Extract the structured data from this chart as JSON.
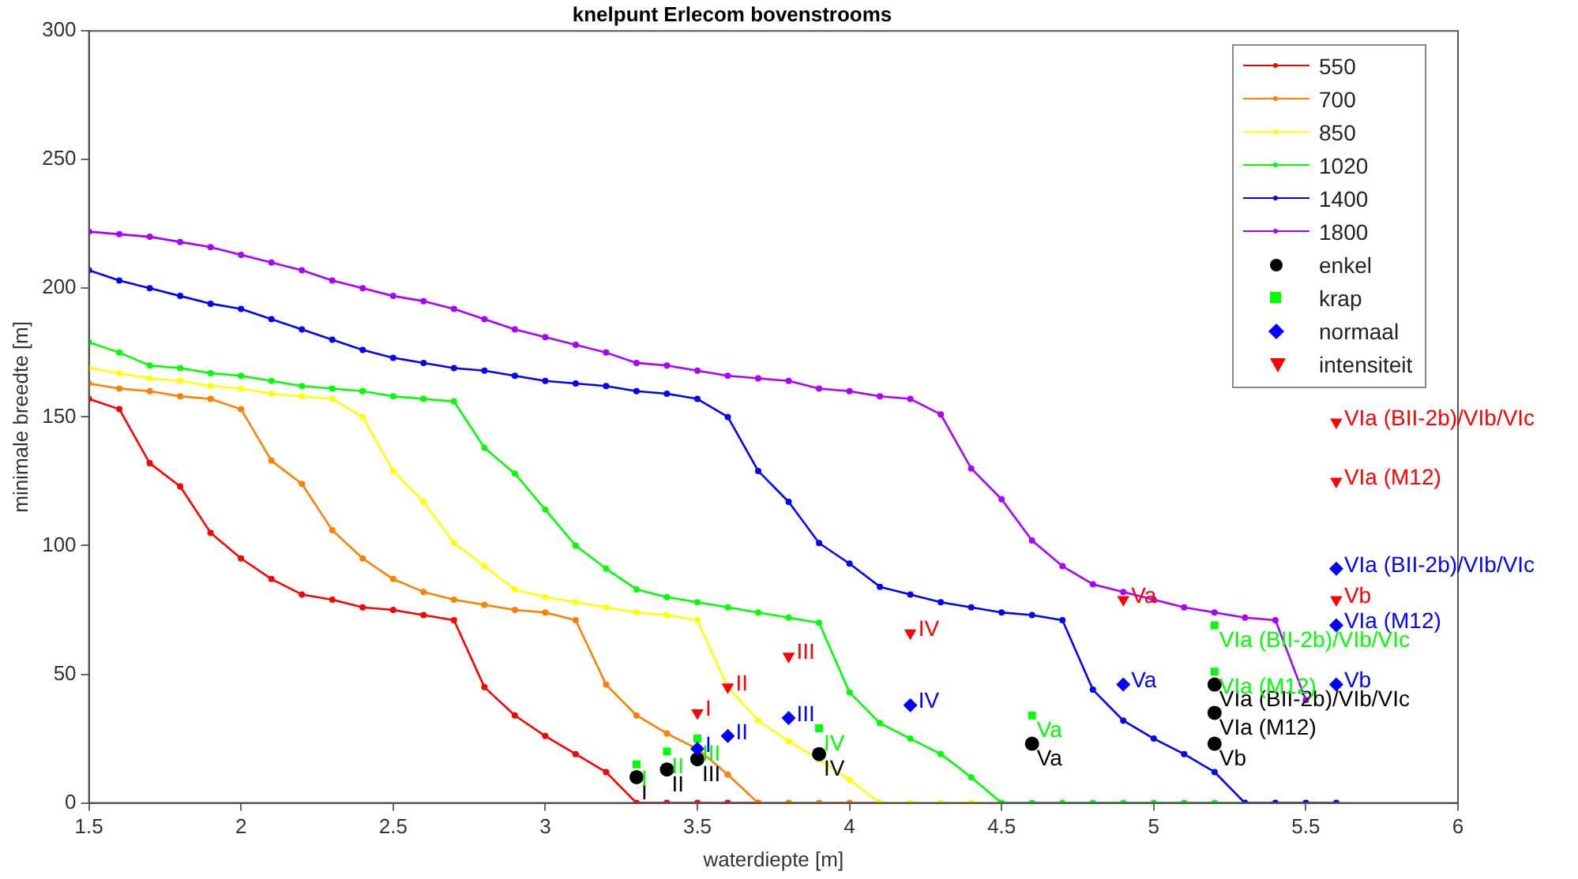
{
  "chart_data": {
    "type": "line",
    "title": "knelpunt Erlecom bovenstrooms",
    "xlabel": "waterdiepte [m]",
    "ylabel": "minimale breedte [m]",
    "xlim": [
      1.5,
      6
    ],
    "xticks": [
      1.5,
      2,
      2.5,
      3,
      3.5,
      4,
      4.5,
      5,
      5.5,
      6
    ],
    "ylim": [
      0,
      300
    ],
    "yticks": [
      0,
      50,
      100,
      150,
      200,
      250,
      300
    ],
    "legend": "top right",
    "x": [
      1.5,
      1.6,
      1.7,
      1.8,
      1.9,
      2.0,
      2.1,
      2.2,
      2.3,
      2.4,
      2.5,
      2.6,
      2.7,
      2.8,
      2.9,
      3.0,
      3.1,
      3.2,
      3.3,
      3.4,
      3.5,
      3.6,
      3.7,
      3.8,
      3.9,
      4.0,
      4.1,
      4.2,
      4.3,
      4.4,
      4.5,
      4.6,
      4.7,
      4.8,
      4.9,
      5.0,
      5.1,
      5.2,
      5.3,
      5.4,
      5.5,
      5.6
    ],
    "series": [
      {
        "name": "550",
        "marker": "circle",
        "color": "#ff0000",
        "values": [
          157,
          153,
          132,
          123,
          105,
          95,
          87,
          81,
          79,
          76,
          75,
          73,
          71,
          45,
          34,
          26,
          19,
          12,
          0,
          0,
          0,
          0,
          0,
          null,
          null,
          null,
          null,
          null,
          null,
          null,
          null,
          null,
          null,
          null,
          null,
          null,
          null,
          null,
          null,
          null,
          null,
          null
        ]
      },
      {
        "name": "700",
        "marker": "circle",
        "color": "#ff8000",
        "values": [
          163,
          161,
          160,
          158,
          157,
          153,
          133,
          124,
          106,
          95,
          87,
          82,
          79,
          77,
          75,
          74,
          71,
          46,
          34,
          27,
          21,
          11,
          0,
          0,
          0,
          0,
          0,
          null,
          null,
          null,
          null,
          null,
          null,
          null,
          null,
          null,
          null,
          null,
          null,
          null,
          null,
          null
        ]
      },
      {
        "name": "850",
        "marker": "circle",
        "color": "#ffff00",
        "values": [
          169,
          167,
          165,
          164,
          162,
          161,
          159,
          158,
          157,
          150,
          129,
          117,
          101,
          92,
          83,
          80,
          78,
          76,
          74,
          73,
          71,
          45,
          32,
          24,
          17,
          9,
          0,
          0,
          0,
          0,
          0,
          null,
          null,
          null,
          null,
          null,
          null,
          null,
          null,
          null,
          null,
          null
        ]
      },
      {
        "name": "1020",
        "marker": "circle",
        "color": "#00ff00",
        "values": [
          179,
          175,
          170,
          169,
          167,
          166,
          164,
          162,
          161,
          160,
          158,
          157,
          156,
          138,
          128,
          114,
          100,
          91,
          83,
          80,
          78,
          76,
          74,
          72,
          70,
          43,
          31,
          25,
          19,
          10,
          0,
          0,
          0,
          0,
          0,
          0,
          0,
          0,
          0,
          null,
          null,
          null
        ]
      },
      {
        "name": "1400",
        "marker": "circle",
        "color": "#0000ff",
        "values": [
          207,
          203,
          200,
          197,
          194,
          192,
          188,
          184,
          180,
          176,
          173,
          171,
          169,
          168,
          166,
          164,
          163,
          162,
          160,
          159,
          157,
          150,
          129,
          117,
          101,
          93,
          84,
          81,
          78,
          76,
          74,
          73,
          71,
          44,
          32,
          25,
          19,
          12,
          0,
          0,
          0,
          0
        ]
      },
      {
        "name": "1800",
        "marker": "circle",
        "color": "#aa00ff",
        "x": [
          1.5,
          1.6,
          1.7,
          1.8,
          1.9,
          2.0,
          2.1,
          2.2,
          2.3,
          2.4,
          2.5,
          2.6,
          2.7,
          2.8,
          2.9,
          3.0,
          3.1,
          3.2,
          3.3,
          3.4,
          3.5,
          3.6,
          3.7,
          3.8,
          3.9,
          4.0,
          4.1,
          4.2,
          4.3,
          4.4,
          4.5,
          4.6,
          4.7,
          4.8,
          4.9,
          5.0,
          5.1,
          5.2,
          5.3,
          5.4,
          5.5
        ],
        "values": [
          222,
          221,
          220,
          218,
          216,
          213,
          210,
          207,
          203,
          200,
          197,
          195,
          192,
          188,
          184,
          181,
          178,
          175,
          171,
          170,
          168,
          166,
          165,
          164,
          161,
          160,
          158,
          157,
          151,
          130,
          118,
          102,
          92,
          85,
          82,
          79,
          76,
          74,
          72,
          71,
          40
        ]
      },
      {
        "name": "enkel",
        "type": "scatter",
        "marker": "circle",
        "color": "#000000",
        "x": [
          3.3,
          3.4,
          3.5,
          3.9,
          4.6,
          5.2,
          5.2,
          5.2
        ],
        "values": [
          10,
          13,
          17,
          19,
          23,
          46,
          35,
          23
        ]
      },
      {
        "name": "krap",
        "type": "scatter",
        "marker": "square",
        "color": "#00ff00",
        "x": [
          3.3,
          3.4,
          3.5,
          3.9,
          4.6,
          5.2,
          5.2
        ],
        "values": [
          15,
          20,
          25,
          29,
          34,
          69,
          51
        ]
      },
      {
        "name": "normaal",
        "type": "scatter",
        "marker": "diamond",
        "color": "#0000ff",
        "x": [
          3.5,
          3.6,
          3.8,
          4.2,
          4.9,
          5.6,
          5.6,
          5.6
        ],
        "values": [
          21,
          26,
          33,
          38,
          46,
          91,
          69,
          46
        ]
      },
      {
        "name": "intensiteit",
        "type": "scatter",
        "marker": "triangle",
        "color": "#ff0000",
        "x": [
          3.5,
          3.6,
          3.8,
          4.2,
          4.9,
          5.6,
          5.6,
          5.6
        ],
        "values": [
          35,
          45,
          57,
          66,
          79,
          148,
          125,
          79
        ]
      }
    ],
    "annotations": [
      {
        "text": "I",
        "x": 3.3,
        "y": 10
      },
      {
        "text": "II",
        "x": 3.4,
        "y": 13
      },
      {
        "text": "III",
        "x": 3.5,
        "y": 17
      },
      {
        "text": "IV",
        "x": 3.9,
        "y": 19
      },
      {
        "text": "Va",
        "x": 4.6,
        "y": 23
      },
      {
        "text": "VIa (BII-2b)/VIb/VIc",
        "x": 5.2,
        "y": 46
      },
      {
        "text": "VIa (M12)",
        "x": 5.2,
        "y": 35
      },
      {
        "text": "Vb",
        "x": 5.2,
        "y": 23
      },
      {
        "text": "I",
        "x": 3.3,
        "y": 15
      },
      {
        "text": "II",
        "x": 3.4,
        "y": 20
      },
      {
        "text": "III",
        "x": 3.5,
        "y": 25
      },
      {
        "text": "IV",
        "x": 3.9,
        "y": 29
      },
      {
        "text": "Va",
        "x": 4.6,
        "y": 34
      },
      {
        "text": "VIa (BII-2b)/VIb/VIc",
        "x": 5.2,
        "y": 69
      },
      {
        "text": "VIa (M12)",
        "x": 5.2,
        "y": 51
      },
      {
        "text": "I",
        "x": 3.5,
        "y": 21
      },
      {
        "text": "II",
        "x": 3.6,
        "y": 26
      },
      {
        "text": "III",
        "x": 3.8,
        "y": 33
      },
      {
        "text": "IV",
        "x": 4.2,
        "y": 38
      },
      {
        "text": "Va",
        "x": 4.9,
        "y": 46
      },
      {
        "text": "VIa (BII-2b)/VIb/VIc",
        "x": 5.6,
        "y": 91
      },
      {
        "text": "VIa (M12)",
        "x": 5.6,
        "y": 69
      },
      {
        "text": "Vb",
        "x": 5.6,
        "y": 46
      },
      {
        "text": "I",
        "x": 3.5,
        "y": 35
      },
      {
        "text": "II",
        "x": 3.6,
        "y": 45
      },
      {
        "text": "III",
        "x": 3.8,
        "y": 57
      },
      {
        "text": "IV",
        "x": 4.2,
        "y": 66
      },
      {
        "text": "Va",
        "x": 4.9,
        "y": 79
      },
      {
        "text": "VIa (BII-2b)/VIb/VIc",
        "x": 5.6,
        "y": 148
      },
      {
        "text": "VIa (M12)",
        "x": 5.6,
        "y": 125
      },
      {
        "text": "Vb",
        "x": 5.6,
        "y": 79
      }
    ]
  }
}
